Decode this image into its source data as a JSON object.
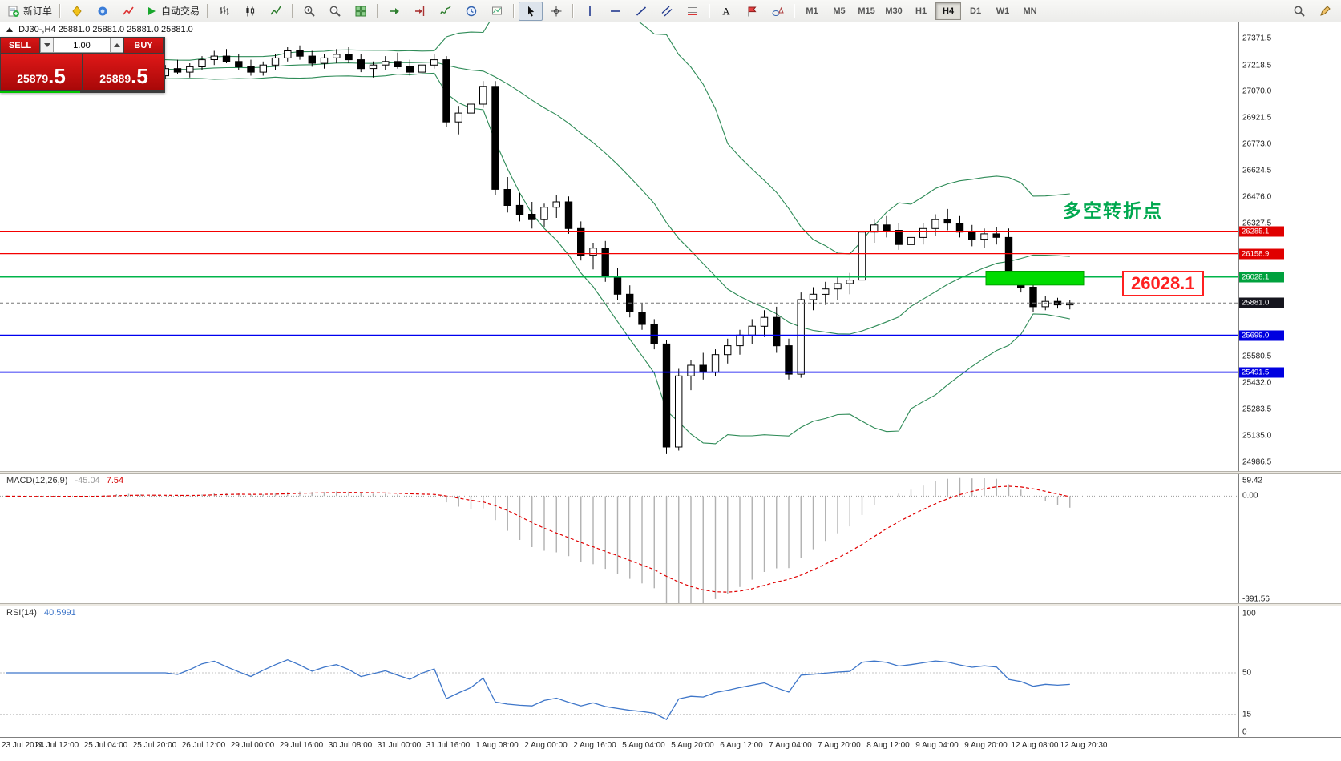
{
  "toolbar": {
    "items": [
      {
        "name": "new-order-button",
        "icon": "new-order-icon",
        "label": "新订单"
      },
      {
        "type": "sep"
      },
      {
        "name": "metaeditor-button",
        "icon": "metaeditor-icon"
      },
      {
        "name": "market-button",
        "icon": "market-icon"
      },
      {
        "name": "signals-button",
        "icon": "signals-icon"
      },
      {
        "name": "autotrading-button",
        "icon": "play-icon",
        "label": "自动交易"
      },
      {
        "type": "sep"
      },
      {
        "name": "bar-chart-button",
        "icon": "bar-chart-icon"
      },
      {
        "name": "candlestick-chart-button",
        "icon": "candlestick-icon"
      },
      {
        "name": "line-chart-button",
        "icon": "line-chart-icon"
      },
      {
        "type": "sep"
      },
      {
        "name": "zoom-in-button",
        "icon": "zoom-in-icon"
      },
      {
        "name": "zoom-out-button",
        "icon": "zoom-out-icon"
      },
      {
        "name": "tile-windows-button",
        "icon": "tile-windows-icon"
      },
      {
        "type": "sep"
      },
      {
        "name": "auto-scroll-button",
        "icon": "auto-scroll-icon"
      },
      {
        "name": "chart-shift-button",
        "icon": "chart-shift-icon"
      },
      {
        "name": "indicators-button",
        "icon": "indicators-icon"
      },
      {
        "name": "periods-button",
        "icon": "clock-icon"
      },
      {
        "name": "templates-button",
        "icon": "template-icon"
      },
      {
        "type": "sep"
      },
      {
        "name": "cursor-button",
        "icon": "cursor-icon",
        "active": true
      },
      {
        "name": "crosshair-button",
        "icon": "crosshair-icon"
      },
      {
        "type": "sep"
      },
      {
        "name": "vertical-line-button",
        "icon": "vertical-line-icon"
      },
      {
        "name": "horizontal-line-button",
        "icon": "horizontal-line-icon"
      },
      {
        "name": "trendline-button",
        "icon": "trendline-icon"
      },
      {
        "name": "channel-button",
        "icon": "channel-icon"
      },
      {
        "name": "fibonacci-button",
        "icon": "fibonacci-icon"
      },
      {
        "type": "sep"
      },
      {
        "name": "text-button",
        "icon": "text-icon"
      },
      {
        "name": "label-button",
        "icon": "label-icon"
      },
      {
        "name": "shapes-button",
        "icon": "shapes-icon"
      },
      {
        "type": "sep"
      }
    ],
    "timeframes": [
      "M1",
      "M5",
      "M15",
      "M30",
      "H1",
      "H4",
      "D1",
      "W1",
      "MN"
    ],
    "active_timeframe": "H4",
    "right_items": [
      {
        "name": "search-button",
        "icon": "search-icon"
      },
      {
        "name": "quick-edit-button",
        "icon": "pencil-icon"
      }
    ]
  },
  "trade_panel": {
    "sell_label": "SELL",
    "buy_label": "BUY",
    "volume": "1.00",
    "sell_price_base": "25879",
    "sell_price_big": ".5",
    "buy_price_base": "25889",
    "buy_price_big": ".5"
  },
  "chart": {
    "info_line": "DJ30-,H4  25881.0 25881.0 25881.0 25881.0",
    "annotation_text": "多空转折点",
    "callout_text": "26028.1"
  },
  "macd_panel": {
    "label": "MACD(12,26,9)",
    "value_macd": "-45.04",
    "value_signal": "7.54",
    "axis": [
      {
        "label": "59.42",
        "value": 59.42
      },
      {
        "label": "0.00",
        "value": 0
      },
      {
        "label": "-391.56",
        "value": -391.56
      }
    ]
  },
  "rsi_panel": {
    "label": "RSI(14)",
    "value": "40.5991",
    "axis": [
      {
        "label": "100",
        "value": 100
      },
      {
        "label": "50",
        "value": 50
      },
      {
        "label": "15",
        "value": 15
      },
      {
        "label": "0",
        "value": 0
      }
    ],
    "level_lines": [
      50,
      15
    ]
  },
  "chart_data": {
    "type": "candlestick",
    "symbol": "DJ30-",
    "timeframe": "H4",
    "last_price": 25881.0,
    "bid": 25879.5,
    "ask": 25889.5,
    "price_range_visible": [
      24935,
      27460
    ],
    "price_axis_ticks": [
      27371.5,
      27218.5,
      27070.0,
      26921.5,
      26773.0,
      26624.5,
      26476.0,
      26327.5,
      25580.5,
      25432.0,
      25283.5,
      25135.0,
      24986.5
    ],
    "levels": [
      {
        "label": "26285.1",
        "price": 26285.1,
        "line_color": "#f40000",
        "tag_color": "#e00000",
        "style": "solid",
        "width": 1.3,
        "type": "resistance"
      },
      {
        "label": "26158.9",
        "price": 26158.9,
        "line_color": "#f40000",
        "tag_color": "#e00000",
        "style": "solid",
        "width": 1.3,
        "type": "resistance"
      },
      {
        "label": "26028.1",
        "price": 26028.1,
        "line_color": "#00b44a",
        "tag_color": "#00a13e",
        "style": "solid",
        "width": 1.7,
        "type": "pivot"
      },
      {
        "label": "25881.0",
        "price": 25881.0,
        "line_color": "#777777",
        "tag_color": "#15151e",
        "style": "dashed",
        "width": 1,
        "type": "current-price"
      },
      {
        "label": "25699.0",
        "price": 25699.0,
        "line_color": "#0000f0",
        "tag_color": "#0000e0",
        "style": "solid",
        "width": 1.8,
        "type": "support"
      },
      {
        "label": "25491.5",
        "price": 25491.5,
        "line_color": "#0000f0",
        "tag_color": "#0000e0",
        "style": "solid",
        "width": 1.8,
        "type": "support"
      }
    ],
    "highlight_zone": {
      "price_top": 26060,
      "price_bottom": 25982,
      "color": "#00dc00",
      "border": "#00a000"
    },
    "indicators": {
      "bollinger": {
        "period": 20,
        "deviation": 2,
        "color": "#2e8b57"
      },
      "macd": {
        "fast": 12,
        "slow": 26,
        "signal": 9,
        "histogram_color": "#b0b0b0",
        "signal_color": "#e00000",
        "axis_max": 65,
        "axis_min": -400
      },
      "rsi": {
        "period": 14,
        "color": "#3e76c9"
      }
    },
    "time_labels": [
      "23 Jul 2019",
      "24 Jul 12:00",
      "25 Jul 04:00",
      "25 Jul 20:00",
      "26 Jul 12:00",
      "29 Jul 00:00",
      "29 Jul 16:00",
      "30 Jul 08:00",
      "31 Jul 00:00",
      "31 Jul 16:00",
      "1 Aug 08:00",
      "2 Aug 00:00",
      "2 Aug 16:00",
      "5 Aug 04:00",
      "5 Aug 20:00",
      "6 Aug 12:00",
      "7 Aug 04:00",
      "7 Aug 20:00",
      "8 Aug 12:00",
      "9 Aug 04:00",
      "9 Aug 20:00",
      "12 Aug 08:00",
      "12 Aug 20:30"
    ],
    "candles": [
      [
        27180,
        27210,
        27150,
        27190
      ],
      [
        27190,
        27230,
        27160,
        27170
      ],
      [
        27170,
        27200,
        27130,
        27160
      ],
      [
        27160,
        27210,
        27140,
        27190
      ],
      [
        27190,
        27240,
        27170,
        27220
      ],
      [
        27220,
        27260,
        27180,
        27200
      ],
      [
        27200,
        27240,
        27150,
        27170
      ],
      [
        27170,
        27210,
        27130,
        27190
      ],
      [
        27190,
        27250,
        27170,
        27230
      ],
      [
        27230,
        27280,
        27200,
        27250
      ],
      [
        27250,
        27290,
        27210,
        27230
      ],
      [
        27230,
        27260,
        27170,
        27190
      ],
      [
        27190,
        27220,
        27140,
        27160
      ],
      [
        27160,
        27220,
        27140,
        27200
      ],
      [
        27200,
        27250,
        27170,
        27180
      ],
      [
        27180,
        27230,
        27150,
        27210
      ],
      [
        27210,
        27270,
        27190,
        27250
      ],
      [
        27250,
        27300,
        27220,
        27270
      ],
      [
        27270,
        27310,
        27230,
        27240
      ],
      [
        27240,
        27280,
        27190,
        27210
      ],
      [
        27210,
        27250,
        27160,
        27180
      ],
      [
        27180,
        27240,
        27160,
        27220
      ],
      [
        27220,
        27280,
        27190,
        27260
      ],
      [
        27260,
        27320,
        27240,
        27300
      ],
      [
        27300,
        27330,
        27250,
        27270
      ],
      [
        27270,
        27300,
        27210,
        27230
      ],
      [
        27230,
        27280,
        27200,
        27260
      ],
      [
        27260,
        27310,
        27230,
        27280
      ],
      [
        27280,
        27320,
        27230,
        27250
      ],
      [
        27250,
        27280,
        27180,
        27200
      ],
      [
        27200,
        27240,
        27150,
        27220
      ],
      [
        27220,
        27270,
        27190,
        27240
      ],
      [
        27240,
        27290,
        27200,
        27210
      ],
      [
        27210,
        27250,
        27160,
        27180
      ],
      [
        27180,
        27240,
        27160,
        27220
      ],
      [
        27220,
        27280,
        27200,
        27250
      ],
      [
        27250,
        27270,
        26870,
        26900
      ],
      [
        26900,
        26990,
        26830,
        26950
      ],
      [
        26950,
        27020,
        26880,
        27000
      ],
      [
        27000,
        27130,
        26980,
        27100
      ],
      [
        27100,
        27130,
        26490,
        26520
      ],
      [
        26520,
        26590,
        26390,
        26430
      ],
      [
        26430,
        26500,
        26340,
        26380
      ],
      [
        26380,
        26450,
        26300,
        26350
      ],
      [
        26350,
        26440,
        26310,
        26420
      ],
      [
        26420,
        26490,
        26360,
        26450
      ],
      [
        26450,
        26480,
        26270,
        26300
      ],
      [
        26300,
        26340,
        26120,
        26150
      ],
      [
        26150,
        26220,
        26070,
        26190
      ],
      [
        26190,
        26230,
        26000,
        26030
      ],
      [
        26030,
        26080,
        25900,
        25930
      ],
      [
        25930,
        25980,
        25800,
        25830
      ],
      [
        25830,
        25880,
        25730,
        25760
      ],
      [
        25760,
        25790,
        25620,
        25650
      ],
      [
        25650,
        25670,
        25030,
        25070
      ],
      [
        25070,
        25510,
        25050,
        25470
      ],
      [
        25470,
        25560,
        25390,
        25530
      ],
      [
        25530,
        25600,
        25450,
        25490
      ],
      [
        25490,
        25620,
        25470,
        25590
      ],
      [
        25590,
        25680,
        25540,
        25640
      ],
      [
        25640,
        25730,
        25590,
        25700
      ],
      [
        25700,
        25790,
        25650,
        25750
      ],
      [
        25750,
        25840,
        25690,
        25800
      ],
      [
        25800,
        25860,
        25600,
        25640
      ],
      [
        25640,
        25680,
        25450,
        25480
      ],
      [
        25480,
        25940,
        25460,
        25900
      ],
      [
        25900,
        25970,
        25840,
        25930
      ],
      [
        25930,
        26000,
        25870,
        25960
      ],
      [
        25960,
        26030,
        25900,
        25990
      ],
      [
        25990,
        26050,
        25930,
        26010
      ],
      [
        26010,
        26310,
        25990,
        26280
      ],
      [
        26280,
        26350,
        26220,
        26320
      ],
      [
        26320,
        26370,
        26250,
        26290
      ],
      [
        26290,
        26330,
        26180,
        26210
      ],
      [
        26210,
        26280,
        26160,
        26250
      ],
      [
        26250,
        26330,
        26210,
        26300
      ],
      [
        26300,
        26380,
        26260,
        26350
      ],
      [
        26350,
        26410,
        26290,
        26330
      ],
      [
        26330,
        26370,
        26250,
        26280
      ],
      [
        26280,
        26320,
        26200,
        26240
      ],
      [
        26240,
        26300,
        26190,
        26270
      ],
      [
        26270,
        26310,
        26210,
        26250
      ],
      [
        26250,
        26300,
        25990,
        26020
      ],
      [
        26020,
        26060,
        25940,
        25970
      ],
      [
        25970,
        26000,
        25830,
        25860
      ],
      [
        25860,
        25920,
        25840,
        25890
      ],
      [
        25890,
        25910,
        25850,
        25870
      ],
      [
        25870,
        25900,
        25845,
        25881
      ]
    ]
  }
}
